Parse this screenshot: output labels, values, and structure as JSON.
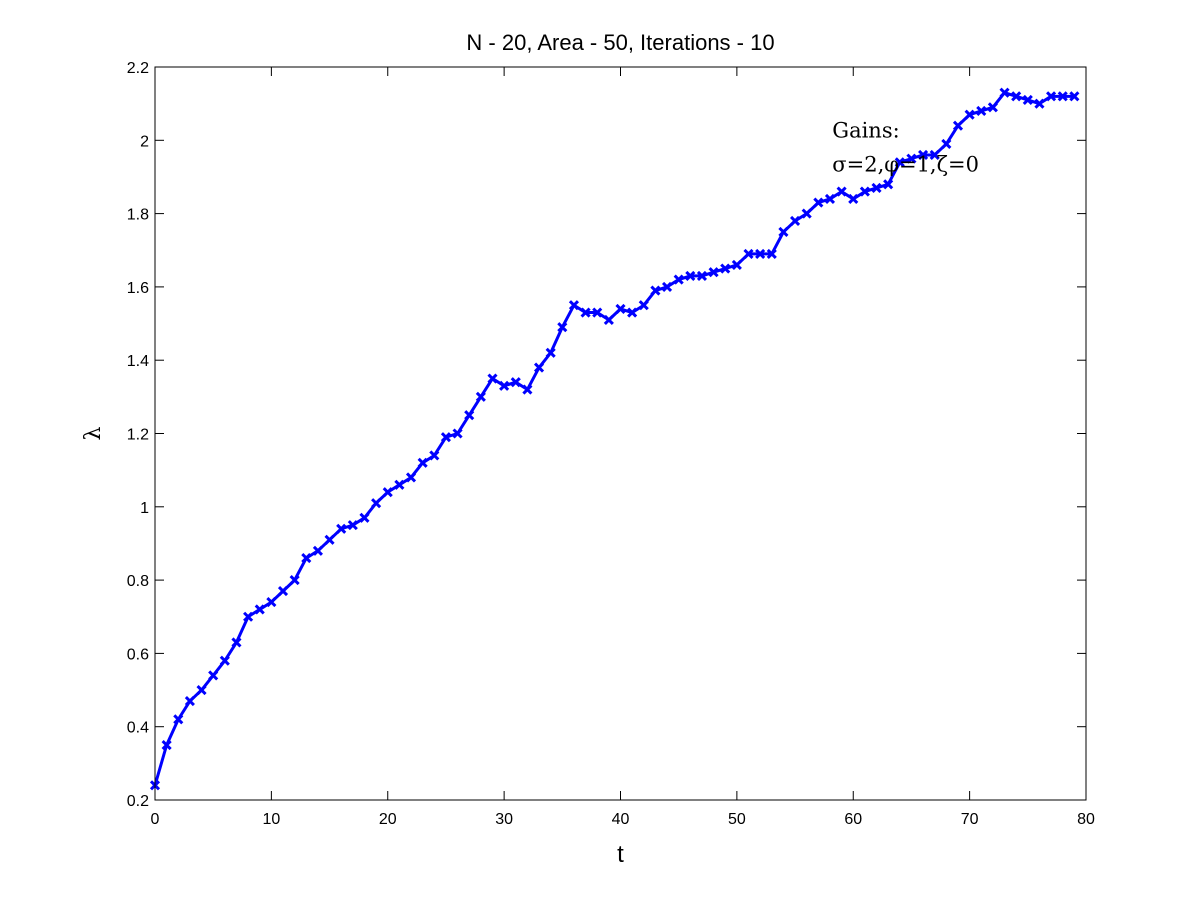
{
  "chart_data": {
    "type": "line",
    "title": "N - 20, Area - 50, Iterations - 10",
    "xlabel": "t",
    "ylabel": "λ",
    "xlim": [
      0,
      80
    ],
    "ylim": [
      0.2,
      2.2
    ],
    "xticks": [
      "0",
      "10",
      "20",
      "30",
      "40",
      "50",
      "60",
      "70",
      "80"
    ],
    "yticks": [
      "0.2",
      "0.4",
      "0.6",
      "0.8",
      "1",
      "1.2",
      "1.4",
      "1.6",
      "1.8",
      "2",
      "2.2"
    ],
    "grid": false,
    "marker": "x",
    "line_color": "#0000ff",
    "annotation": {
      "line1": "Gains:",
      "line2": "σ=2,φ=1,ζ=0"
    },
    "series": [
      {
        "x": [
          0,
          1,
          2,
          3,
          4,
          5,
          6,
          7,
          8,
          9,
          10,
          11,
          12,
          13,
          14,
          15,
          16,
          17,
          18,
          19,
          20,
          21,
          22,
          23,
          24,
          25,
          26,
          27,
          28,
          29,
          30,
          31,
          32,
          33,
          34,
          35,
          36,
          37,
          38,
          39,
          40,
          41,
          42,
          43,
          44,
          45,
          46,
          47,
          48,
          49,
          50,
          51,
          52,
          53,
          54,
          55,
          56,
          57,
          58,
          59,
          60,
          61,
          62,
          63,
          64,
          65,
          66,
          67,
          68,
          69,
          70,
          71,
          72,
          73,
          74,
          75,
          76,
          77,
          78,
          79
        ],
        "y": [
          0.24,
          0.35,
          0.42,
          0.47,
          0.5,
          0.54,
          0.58,
          0.63,
          0.7,
          0.72,
          0.74,
          0.77,
          0.8,
          0.86,
          0.88,
          0.91,
          0.94,
          0.95,
          0.97,
          1.01,
          1.04,
          1.06,
          1.08,
          1.12,
          1.14,
          1.19,
          1.2,
          1.25,
          1.3,
          1.35,
          1.33,
          1.34,
          1.32,
          1.38,
          1.42,
          1.49,
          1.55,
          1.53,
          1.53,
          1.51,
          1.54,
          1.53,
          1.55,
          1.59,
          1.6,
          1.62,
          1.63,
          1.63,
          1.64,
          1.65,
          1.66,
          1.69,
          1.69,
          1.69,
          1.75,
          1.78,
          1.8,
          1.83,
          1.84,
          1.86,
          1.84,
          1.86,
          1.87,
          1.88,
          1.94,
          1.95,
          1.96,
          1.96,
          1.99,
          2.04,
          2.07,
          2.08,
          2.09,
          2.13,
          2.12,
          2.11,
          2.1,
          2.12,
          2.12,
          2.12
        ]
      }
    ]
  }
}
